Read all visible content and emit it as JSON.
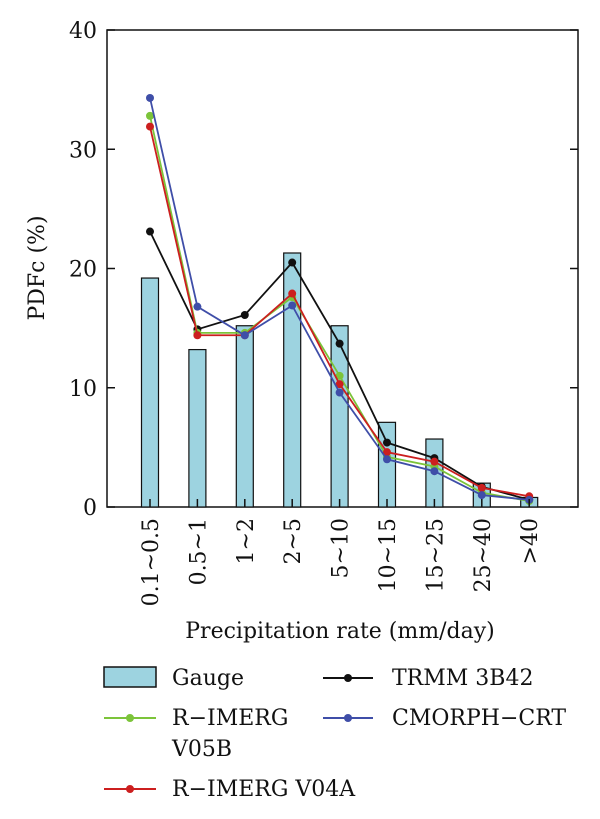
{
  "chart_data": {
    "type": "bar",
    "categories": [
      "0.1~0.5",
      "0.5~1",
      "1~2",
      "2~5",
      "5~10",
      "10~15",
      "15~25",
      "25~40",
      ">40"
    ],
    "ylabel": "PDFc (%)",
    "xlabel": "Precipitation rate (mm/day)",
    "ylim": [
      0,
      40
    ],
    "yticks": [
      0,
      10,
      20,
      30,
      40
    ],
    "grid": false,
    "legend_position": "bottom",
    "bar_series": {
      "name": "Gauge",
      "values": [
        19.2,
        13.2,
        15.2,
        21.3,
        15.2,
        7.1,
        5.7,
        2.0,
        0.8
      ],
      "color": "#9dd3e0"
    },
    "line_series": [
      {
        "name": "TRMM 3B42",
        "color": "#111111",
        "values": [
          23.1,
          14.9,
          16.1,
          20.5,
          13.7,
          5.4,
          4.1,
          1.7,
          0.6
        ]
      },
      {
        "name": "R−IMERG V05B",
        "color": "#7cc43a",
        "values": [
          32.8,
          14.6,
          14.6,
          17.6,
          11.0,
          4.2,
          3.4,
          1.2,
          0.5
        ]
      },
      {
        "name": "R−IMERG V04A",
        "color": "#cc1f1f",
        "values": [
          31.9,
          14.4,
          14.4,
          17.9,
          10.3,
          4.6,
          3.8,
          1.6,
          0.9
        ]
      },
      {
        "name": "CMORPH−CRT",
        "color": "#3f4ea8",
        "values": [
          34.3,
          16.8,
          14.4,
          16.9,
          9.6,
          4.0,
          3.0,
          1.0,
          0.6
        ]
      }
    ]
  },
  "legend": {
    "gauge": "Gauge",
    "trmm": "TRMM 3B42",
    "imerg_v05b_line1": "R−IMERG",
    "imerg_v05b_line2": "V05B",
    "cmorph": "CMORPH−CRT",
    "imerg_v04a": "R−IMERG V04A"
  }
}
